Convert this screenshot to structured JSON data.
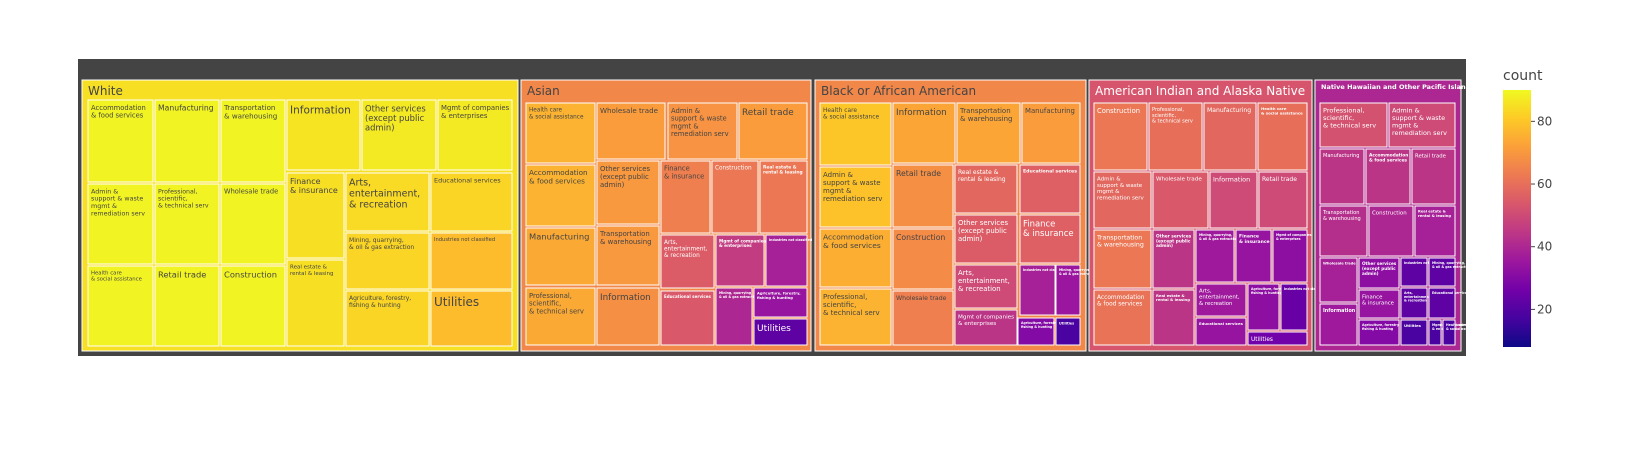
{
  "chart_data": {
    "type": "treemap",
    "colorbar": {
      "title": "count",
      "ticks": [
        20,
        40,
        60,
        80
      ],
      "range": [
        8,
        90
      ],
      "colorscale": [
        "#0d0887",
        "#46039f",
        "#7201a8",
        "#9c179e",
        "#bd3786",
        "#d8576b",
        "#ed7953",
        "#fb9f3a",
        "#fdca26",
        "#f0f921"
      ]
    },
    "root_color": "#444444",
    "groups": [
      {
        "name": "White",
        "count": 85,
        "tiles": [
          {
            "label": "Accommodation\n& food services",
            "value": 89
          },
          {
            "label": "Manufacturing",
            "value": 89
          },
          {
            "label": "Transportation\n& warehousing",
            "value": 89
          },
          {
            "label": "Information",
            "value": 86
          },
          {
            "label": "Other services\n(except public\nadmin)",
            "value": 87
          },
          {
            "label": "Mgmt of companies\n& enterprises",
            "value": 87
          },
          {
            "label": "Admin &\nsupport & waste\nmgmt &\nremediation serv",
            "value": 89
          },
          {
            "label": "Professional,\nscientific,\n& technical serv",
            "value": 89
          },
          {
            "label": "Wholesale trade",
            "value": 89
          },
          {
            "label": "Finance\n& insurance",
            "value": 85
          },
          {
            "label": "Arts,\nentertainment,\n& recreation",
            "value": 84
          },
          {
            "label": "Educational services",
            "value": 83
          },
          {
            "label": "Mining, quarrying,\n& oil & gas extraction",
            "value": 83
          },
          {
            "label": "Industries not classified",
            "value": 78
          },
          {
            "label": "Health care\n& social assistance",
            "value": 89
          },
          {
            "label": "Retail trade",
            "value": 89
          },
          {
            "label": "Construction",
            "value": 89
          },
          {
            "label": "Real estate &\nrental & leasing",
            "value": 85
          },
          {
            "label": "Agriculture, forestry,\nfishing & hunting",
            "value": 83
          },
          {
            "label": "Utilities",
            "value": 78
          }
        ]
      },
      {
        "name": "Asian",
        "count": 66,
        "tiles": [
          {
            "label": "Health care\n& social assistance",
            "value": 76
          },
          {
            "label": "Wholesale trade",
            "value": 71
          },
          {
            "label": "Admin &\nsupport & waste\nmgmt &\nremediation serv",
            "value": 69
          },
          {
            "label": "Retail trade",
            "value": 71
          },
          {
            "label": "Accommodation\n& food services",
            "value": 76
          },
          {
            "label": "Other services\n(except public\nadmin)",
            "value": 70
          },
          {
            "label": "Finance\n& insurance",
            "value": 64
          },
          {
            "label": "Construction",
            "value": 62
          },
          {
            "label": "Real estate &\nrental & leasing",
            "value": 62
          },
          {
            "label": "Manufacturing",
            "value": 74
          },
          {
            "label": "Transportation\n& warehousing",
            "value": 70
          },
          {
            "label": "Arts,\nentertainment,\n& recreation",
            "value": 55
          },
          {
            "label": "Mgmt of companies\n& enterprises",
            "value": 46
          },
          {
            "label": "Industries not classified",
            "value": 38
          },
          {
            "label": "Professional,\nscientific,\n& technical serv",
            "value": 74
          },
          {
            "label": "Information",
            "value": 68
          },
          {
            "label": "Educational services",
            "value": 54
          },
          {
            "label": "Mining, quarrying,\n& oil & gas extraction",
            "value": 40
          },
          {
            "label": "Agriculture, forestry,\nfishing & hunting",
            "value": 34
          },
          {
            "label": "Utilities",
            "value": 22
          }
        ]
      },
      {
        "name": "Black or African American",
        "count": 66,
        "tiles": [
          {
            "label": "Health care\n& social assistance",
            "value": 80
          },
          {
            "label": "Information",
            "value": 73
          },
          {
            "label": "Transportation\n& warehousing",
            "value": 73
          },
          {
            "label": "Manufacturing",
            "value": 71
          },
          {
            "label": "Admin &\nsupport & waste\nmgmt &\nremediation serv",
            "value": 79
          },
          {
            "label": "Retail trade",
            "value": 68
          },
          {
            "label": "Real estate &\nrental & leasing",
            "value": 58
          },
          {
            "label": "Educational services",
            "value": 56
          },
          {
            "label": "Accommodation\n& food services",
            "value": 75
          },
          {
            "label": "Construction",
            "value": 67
          },
          {
            "label": "Other services\n(except public\nadmin)",
            "value": 55
          },
          {
            "label": "Finance\n& insurance",
            "value": 56
          },
          {
            "label": "Arts,\nentertainment,\n& recreation",
            "value": 50
          },
          {
            "label": "Industries not classified",
            "value": 38
          },
          {
            "label": "Mining, quarrying,\n& oil & gas extraction",
            "value": 35
          },
          {
            "label": "Professional,\nscientific,\n& technical serv",
            "value": 76
          },
          {
            "label": "Wholesale trade",
            "value": 64
          },
          {
            "label": "Mgmt of companies\n& enterprises",
            "value": 44
          },
          {
            "label": "Agriculture, forestry,\nfishing & hunting",
            "value": 30
          },
          {
            "label": "Utilities",
            "value": 18
          }
        ]
      },
      {
        "name": "American Indian and Alaska Native",
        "count": 53,
        "tiles": [
          {
            "label": "Construction",
            "value": 62
          },
          {
            "label": "Professional,\nscientific,\n& technical serv",
            "value": 60
          },
          {
            "label": "Manufacturing",
            "value": 58
          },
          {
            "label": "Health care\n& social assistance",
            "value": 60
          },
          {
            "label": "Admin &\nsupport & waste\nmgmt &\nremediation serv",
            "value": 58
          },
          {
            "label": "Wholesale trade",
            "value": 54
          },
          {
            "label": "Information",
            "value": 50
          },
          {
            "label": "Retail trade",
            "value": 50
          },
          {
            "label": "Transportation\n& warehousing",
            "value": 62
          },
          {
            "label": "Other services\n(except public\nadmin)",
            "value": 44
          },
          {
            "label": "Mining, quarrying,\n& oil & gas extraction",
            "value": 36
          },
          {
            "label": "Finance\n& insurance",
            "value": 34
          },
          {
            "label": "Mgmt of companies\n& enterprises",
            "value": 32
          },
          {
            "label": "Accommodation\n& food services",
            "value": 61
          },
          {
            "label": "Real estate &\nrental & leasing",
            "value": 44
          },
          {
            "label": "Arts,\nentertainment,\n& recreation",
            "value": 36
          },
          {
            "label": "Agriculture, forestry,\nfishing & hunting",
            "value": 32
          },
          {
            "label": "Industries not classified",
            "value": 24
          },
          {
            "label": "Educational services",
            "value": 34
          },
          {
            "label": "Utilities",
            "value": 26
          }
        ]
      },
      {
        "name": "Native Hawaiian and Other Pacific Islander",
        "count": 40,
        "tiles": [
          {
            "label": "Professional,\nscientific,\n& technical serv",
            "value": 52
          },
          {
            "label": "Admin &\nsupport & waste\nmgmt &\nremediation serv",
            "value": 50
          },
          {
            "label": "Manufacturing",
            "value": 44
          },
          {
            "label": "Accommodation\n& food services",
            "value": 44
          },
          {
            "label": "Retail trade",
            "value": 44
          },
          {
            "label": "Transportation\n& warehousing",
            "value": 42
          },
          {
            "label": "Construction",
            "value": 40
          },
          {
            "label": "Real estate &\nrental & leasing",
            "value": 38
          },
          {
            "label": "Wholesale trade",
            "value": 38
          },
          {
            "label": "Other services\n(except public\nadmin)",
            "value": 32
          },
          {
            "label": "Industries not classified",
            "value": 22
          },
          {
            "label": "Mining, quarrying,\n& oil & gas extraction",
            "value": 22
          },
          {
            "label": "Information",
            "value": 36
          },
          {
            "label": "Finance\n& insurance",
            "value": 34
          },
          {
            "label": "Arts,\nentertainment,\n& recreation",
            "value": 22
          },
          {
            "label": "Educational services",
            "value": 22
          },
          {
            "label": "Agriculture, forestry,\nfishing & hunting",
            "value": 30
          },
          {
            "label": "Utilities",
            "value": 18
          },
          {
            "label": "Mgmt of companies\n& enterprises",
            "value": 18
          },
          {
            "label": "Health care\n& social assistance",
            "value": 18
          }
        ]
      }
    ]
  }
}
